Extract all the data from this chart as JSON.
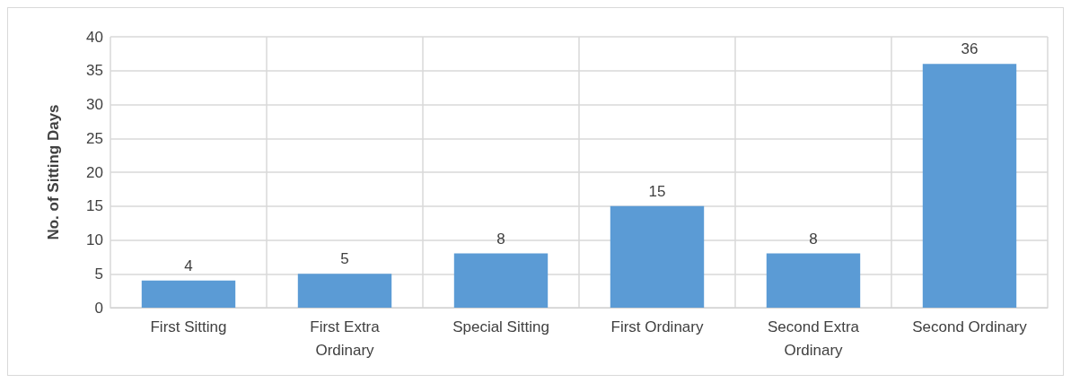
{
  "chart_data": {
    "type": "bar",
    "ylabel": "No. of Sitting Days",
    "categories": [
      "First Sitting",
      "First Extra\nOrdinary",
      "Special Sitting",
      "First Ordinary",
      "Second Extra\nOrdinary",
      "Second Ordinary"
    ],
    "values": [
      4,
      5,
      8,
      15,
      8,
      36
    ],
    "color": "#5b9bd5",
    "ylim": [
      0,
      40
    ],
    "yticks": [
      0,
      5,
      10,
      15,
      20,
      25,
      30,
      35,
      40
    ],
    "grid": true,
    "data_labels": true
  }
}
